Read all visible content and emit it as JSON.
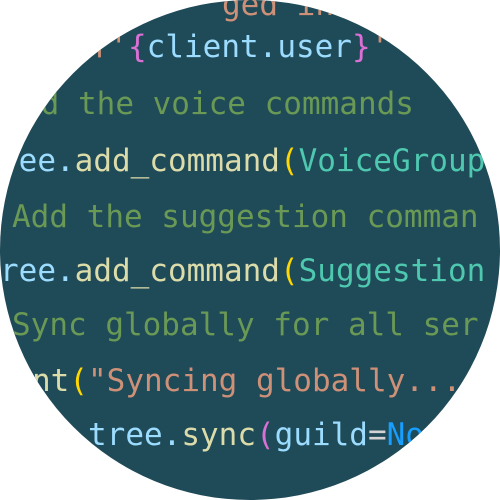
{
  "colors": {
    "background": "#1f4a58",
    "default": "#d4d4d4",
    "comment": "#6a9955",
    "keyword": "#4fc1ff",
    "class": "#4ec9b0",
    "function": "#dcdcaa",
    "string": "#ce9178",
    "bracket_yellow": "#ffd700",
    "bracket_purple": "#da70d6",
    "bracket_blue": "#179fff",
    "variable": "#9cdcfe"
  },
  "code_lines": [
    {
      "tokens": [
        {
          "text": "ged in as {cl",
          "color": "#ce9178"
        }
      ]
    },
    {
      "tokens": [
        {
          "text": "(f'",
          "color": "#ce9178"
        },
        {
          "text": "{",
          "color": "#da70d6"
        },
        {
          "text": "client.user",
          "color": "#9cdcfe"
        },
        {
          "text": "}",
          "color": "#da70d6"
        },
        {
          "text": "'",
          "color": "#ce9178"
        }
      ]
    },
    {
      "tokens": [
        {
          "text": "dd the voice commands",
          "color": "#6a9955"
        }
      ]
    },
    {
      "tokens": [
        {
          "text": "ree.",
          "color": "#9cdcfe"
        },
        {
          "text": "add_command",
          "color": "#dcdcaa"
        },
        {
          "text": "(",
          "color": "#ffd700"
        },
        {
          "text": "VoiceGroup",
          "color": "#4ec9b0"
        }
      ]
    },
    {
      "tokens": [
        {
          "text": "Add the suggestion comman",
          "color": "#6a9955"
        }
      ]
    },
    {
      "tokens": [
        {
          "text": "ree.",
          "color": "#9cdcfe"
        },
        {
          "text": "add_command",
          "color": "#dcdcaa"
        },
        {
          "text": "(",
          "color": "#ffd700"
        },
        {
          "text": "Suggestion",
          "color": "#4ec9b0"
        }
      ]
    },
    {
      "tokens": [
        {
          "text": "Sync globally for all ser",
          "color": "#6a9955"
        }
      ]
    },
    {
      "tokens": [
        {
          "text": "nt",
          "color": "#dcdcaa"
        },
        {
          "text": "(",
          "color": "#ffd700"
        },
        {
          "text": "\"Syncing globally...",
          "color": "#ce9178"
        }
      ]
    },
    {
      "tokens": [
        {
          "text": "tree.",
          "color": "#9cdcfe"
        },
        {
          "text": "sync",
          "color": "#dcdcaa"
        },
        {
          "text": "(",
          "color": "#da70d6"
        },
        {
          "text": "guild",
          "color": "#9cdcfe"
        },
        {
          "text": "=",
          "color": "#d4d4d4"
        },
        {
          "text": "No",
          "color": "#179fff"
        }
      ]
    }
  ]
}
